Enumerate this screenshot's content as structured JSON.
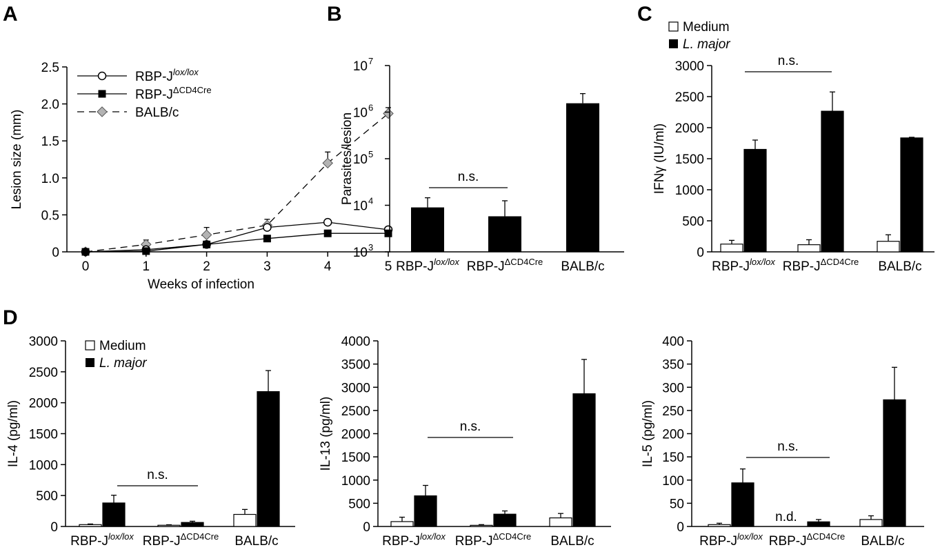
{
  "panels": {
    "A": "A",
    "B": "B",
    "C": "C",
    "D": "D"
  },
  "category_labels": [
    {
      "base": "RBP-J",
      "sup": "lox/lox",
      "italic_sup": true
    },
    {
      "base": "RBP-J",
      "sup": "ΔCD4Cre",
      "italic_sup": false
    },
    {
      "base": "BALB/c",
      "sup": "",
      "italic_sup": false
    }
  ],
  "legend_bars": {
    "medium": "Medium",
    "lmajor": "L. major"
  },
  "ns_label": "n.s.",
  "nd_label": "n.d.",
  "chart_data": [
    {
      "id": "A",
      "type": "line",
      "xlabel": "Weeks of infection",
      "ylabel": "Lesion size (mm)",
      "x": [
        0,
        1,
        2,
        3,
        4,
        5
      ],
      "xlim": [
        0,
        5
      ],
      "ylim": [
        0,
        2.5
      ],
      "yticks": [
        "0",
        "0.5",
        "1.0",
        "1.5",
        "2.0",
        "2.5"
      ],
      "yticks_values": [
        0,
        0.5,
        1.0,
        1.5,
        2.0,
        2.5
      ],
      "legend_position": "top-left",
      "series": [
        {
          "name": "RBP-J",
          "name_sup": "lox/lox",
          "marker": "open-circle",
          "line": "solid",
          "values": [
            0,
            0.03,
            0.1,
            0.33,
            0.4,
            0.3
          ],
          "errors": [
            0,
            0.02,
            0.02,
            0.04,
            0.04,
            0.03
          ]
        },
        {
          "name": "RBP-J",
          "name_sup": "ΔCD4Cre",
          "marker": "filled-square",
          "line": "solid",
          "values": [
            0,
            0.01,
            0.1,
            0.18,
            0.25,
            0.25
          ],
          "errors": [
            0,
            0.01,
            0.02,
            0.02,
            0.03,
            0.03
          ]
        },
        {
          "name": "BALB/c",
          "name_sup": "",
          "marker": "gray-diamond",
          "line": "dashed",
          "values": [
            0,
            0.1,
            0.23,
            0.36,
            1.2,
            1.87
          ],
          "errors": [
            0,
            0.06,
            0.1,
            0.08,
            0.15,
            0.08
          ]
        }
      ]
    },
    {
      "id": "B",
      "type": "bar",
      "scale": "log",
      "ylabel": "Parasites/lesion",
      "ylim": [
        1000,
        10000000
      ],
      "yticks_exponents": [
        "3",
        "4",
        "5",
        "6",
        "7"
      ],
      "values": [
        9000,
        5800,
        1550000
      ],
      "errors_upper": [
        14500,
        12500,
        2500000
      ],
      "ns_between": [
        0,
        1
      ]
    },
    {
      "id": "C",
      "type": "bar",
      "ylabel": "IFNγ (IU/ml)",
      "ylim": [
        0,
        3000
      ],
      "yticks": [
        "0",
        "500",
        "1000",
        "1500",
        "2000",
        "2500",
        "3000"
      ],
      "series": [
        {
          "name": "Medium",
          "values": [
            125,
            115,
            170
          ],
          "errors": [
            60,
            80,
            105
          ]
        },
        {
          "name": "L. major",
          "values": [
            1650,
            2265,
            1835
          ],
          "errors": [
            150,
            310,
            10
          ]
        }
      ],
      "legend_position": "top-left",
      "ns_between": [
        0,
        1
      ]
    },
    {
      "id": "D1",
      "type": "bar",
      "ylabel": "IL-4 (pg/ml)",
      "ylim": [
        0,
        3000
      ],
      "yticks": [
        "0",
        "500",
        "1000",
        "1500",
        "2000",
        "2500",
        "3000"
      ],
      "series": [
        {
          "name": "Medium",
          "values": [
            30,
            20,
            195
          ],
          "errors": [
            10,
            8,
            80
          ]
        },
        {
          "name": "L. major",
          "values": [
            380,
            65,
            2180
          ],
          "errors": [
            125,
            20,
            340
          ]
        }
      ],
      "legend_position": "top-left",
      "ns_between": [
        0,
        1
      ]
    },
    {
      "id": "D2",
      "type": "bar",
      "ylabel": "IL-13 (pg/ml)",
      "ylim": [
        0,
        4000
      ],
      "yticks": [
        "0",
        "500",
        "1000",
        "1500",
        "2000",
        "2500",
        "3000",
        "3500",
        "4000"
      ],
      "series": [
        {
          "name": "Medium",
          "values": [
            105,
            25,
            185
          ],
          "errors": [
            95,
            15,
            95
          ]
        },
        {
          "name": "L. major",
          "values": [
            660,
            265,
            2860
          ],
          "errors": [
            225,
            70,
            740
          ]
        }
      ],
      "ns_between": [
        0,
        1
      ]
    },
    {
      "id": "D3",
      "type": "bar",
      "ylabel": "IL-5 (pg/ml)",
      "ylim": [
        0,
        400
      ],
      "yticks": [
        "0",
        "50",
        "100",
        "150",
        "200",
        "250",
        "300",
        "350",
        "400"
      ],
      "series": [
        {
          "name": "Medium",
          "values": [
            4,
            null,
            15
          ],
          "errors": [
            3,
            null,
            8
          ]
        },
        {
          "name": "L. major",
          "values": [
            94,
            10,
            273
          ],
          "errors": [
            30,
            5,
            70
          ]
        }
      ],
      "nd_index": 1,
      "ns_between": [
        0,
        1
      ]
    }
  ]
}
